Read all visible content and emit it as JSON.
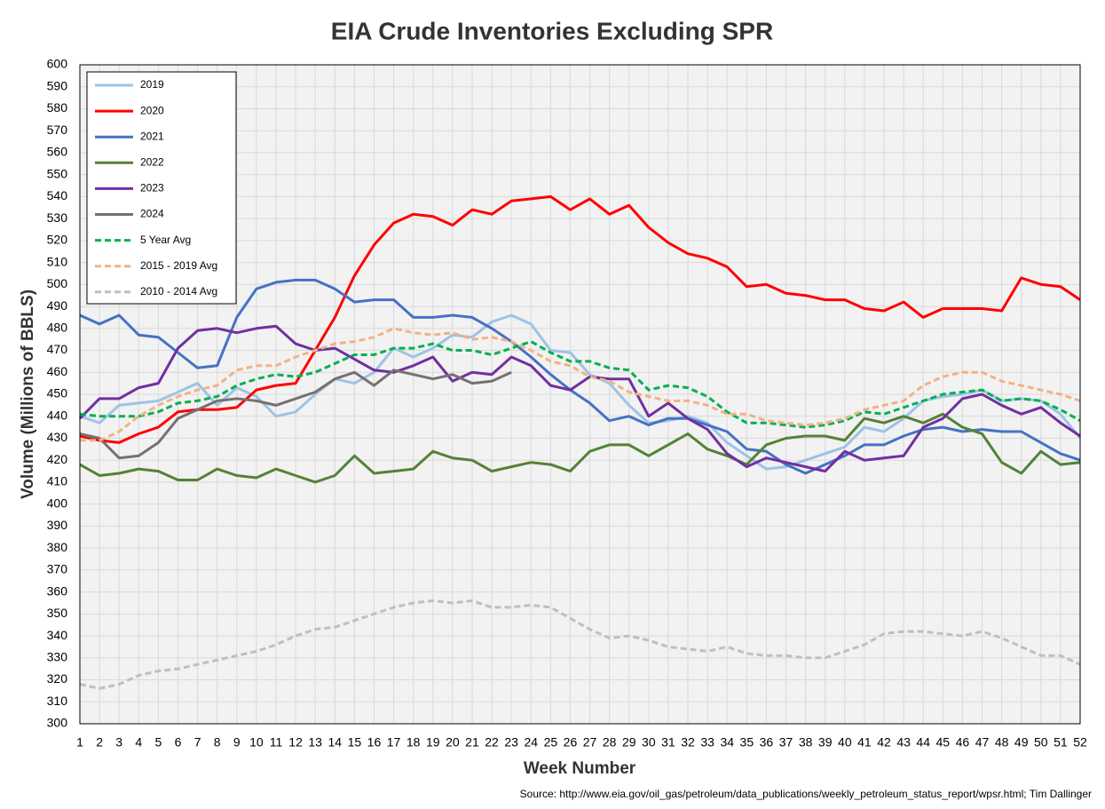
{
  "chart_data": {
    "type": "line",
    "title": "EIA Crude Inventories Excluding SPR",
    "x_label": "Week Number",
    "y_label": "Volume (Millions of BBLS)",
    "source": "Source: http://www.eia.gov/oil_gas/petroleum/data_publications/weekly_petroleum_status_report/wpsr.html; Tim Dallinger",
    "x": [
      1,
      2,
      3,
      4,
      5,
      6,
      7,
      8,
      9,
      10,
      11,
      12,
      13,
      14,
      15,
      16,
      17,
      18,
      19,
      20,
      21,
      22,
      23,
      24,
      25,
      26,
      27,
      28,
      29,
      30,
      31,
      32,
      33,
      34,
      35,
      36,
      37,
      38,
      39,
      40,
      41,
      42,
      43,
      44,
      45,
      46,
      47,
      48,
      49,
      50,
      51,
      52
    ],
    "xlim": [
      1,
      52
    ],
    "xticks": [
      1,
      2,
      3,
      4,
      5,
      6,
      7,
      8,
      9,
      10,
      11,
      12,
      13,
      14,
      15,
      16,
      17,
      18,
      19,
      20,
      21,
      22,
      23,
      24,
      25,
      26,
      27,
      28,
      29,
      30,
      31,
      32,
      33,
      34,
      35,
      36,
      37,
      38,
      39,
      40,
      41,
      42,
      43,
      44,
      45,
      46,
      47,
      48,
      49,
      50,
      51,
      52
    ],
    "ylim": [
      300,
      600
    ],
    "yticks": [
      300,
      310,
      320,
      330,
      340,
      350,
      360,
      370,
      380,
      390,
      400,
      410,
      420,
      430,
      440,
      450,
      460,
      470,
      480,
      490,
      500,
      510,
      520,
      530,
      540,
      550,
      560,
      570,
      580,
      590,
      600
    ],
    "grid": true,
    "legend": "upper left",
    "series": [
      {
        "name": "2019",
        "color": "#9dc3e6",
        "style": "solid",
        "values": [
          440,
          437,
          445,
          446,
          447,
          451,
          455,
          445,
          453,
          449,
          440,
          442,
          450,
          457,
          455,
          460,
          471,
          467,
          471,
          477,
          476,
          483,
          486,
          482,
          470,
          469,
          459,
          455,
          445,
          437,
          438,
          440,
          437,
          428,
          422,
          416,
          417,
          420,
          423,
          426,
          435,
          433,
          439,
          447,
          449,
          450,
          452,
          447,
          448,
          447,
          441,
          430
        ]
      },
      {
        "name": "2020",
        "color": "#ff0000",
        "style": "solid",
        "values": [
          431,
          429,
          428,
          432,
          435,
          442,
          443,
          443,
          444,
          452,
          454,
          455,
          470,
          485,
          504,
          518,
          528,
          532,
          531,
          527,
          534,
          532,
          538,
          539,
          540,
          534,
          539,
          532,
          536,
          526,
          519,
          514,
          512,
          508,
          499,
          500,
          496,
          495,
          493,
          493,
          489,
          488,
          492,
          485,
          489,
          489,
          489,
          488,
          503,
          500,
          499,
          493
        ]
      },
      {
        "name": "2021",
        "color": "#4472c4",
        "style": "solid",
        "values": [
          486,
          482,
          486,
          477,
          476,
          469,
          462,
          463,
          485,
          498,
          501,
          502,
          502,
          498,
          492,
          493,
          493,
          485,
          485,
          486,
          485,
          480,
          474,
          467,
          459,
          452,
          446,
          438,
          440,
          436,
          439,
          439,
          436,
          433,
          425,
          424,
          418,
          414,
          418,
          422,
          427,
          427,
          431,
          434,
          435,
          433,
          434,
          433,
          433,
          428,
          423,
          420
        ]
      },
      {
        "name": "2022",
        "color": "#548235",
        "style": "solid",
        "values": [
          418,
          413,
          414,
          416,
          415,
          411,
          411,
          416,
          413,
          412,
          416,
          413,
          410,
          413,
          422,
          414,
          415,
          416,
          424,
          421,
          420,
          415,
          417,
          419,
          418,
          415,
          424,
          427,
          427,
          422,
          427,
          432,
          425,
          422,
          418,
          427,
          430,
          431,
          431,
          429,
          439,
          437,
          440,
          437,
          441,
          435,
          432,
          419,
          414,
          424,
          418,
          419
        ]
      },
      {
        "name": "2023",
        "color": "#7030a0",
        "style": "solid",
        "values": [
          439,
          448,
          448,
          453,
          455,
          471,
          479,
          480,
          478,
          480,
          481,
          473,
          470,
          471,
          466,
          461,
          460,
          463,
          467,
          456,
          460,
          459,
          467,
          463,
          454,
          452,
          458,
          457,
          457,
          440,
          446,
          439,
          434,
          423,
          417,
          421,
          419,
          417,
          415,
          424,
          420,
          421,
          422,
          435,
          439,
          448,
          450,
          445,
          441,
          444,
          437,
          431
        ]
      },
      {
        "name": "2024",
        "color": "#767171",
        "style": "solid",
        "values": [
          432,
          430,
          421,
          422,
          428,
          439,
          443,
          447,
          448,
          447,
          445,
          448,
          451,
          457,
          460,
          454,
          461,
          459,
          457,
          459,
          455,
          456,
          460,
          null,
          null,
          null,
          null,
          null,
          null,
          null,
          null,
          null,
          null,
          null,
          null,
          null,
          null,
          null,
          null,
          null,
          null,
          null,
          null,
          null,
          null,
          null,
          null,
          null,
          null,
          null,
          null,
          null
        ]
      },
      {
        "name": "5 Year Avg",
        "color": "#00b050",
        "style": "dashed",
        "values": [
          441,
          440,
          440,
          440,
          442,
          446,
          447,
          449,
          454,
          457,
          459,
          458,
          460,
          464,
          468,
          468,
          471,
          471,
          473,
          470,
          470,
          468,
          471,
          474,
          469,
          465,
          465,
          462,
          461,
          452,
          454,
          453,
          449,
          442,
          437,
          437,
          436,
          435,
          436,
          438,
          442,
          441,
          444,
          447,
          450,
          451,
          452,
          447,
          448,
          447,
          443,
          438
        ]
      },
      {
        "name": "2015 - 2019 Avg",
        "color": "#f4b183",
        "style": "dashed",
        "values": [
          429,
          429,
          433,
          440,
          445,
          449,
          452,
          454,
          461,
          463,
          463,
          467,
          470,
          473,
          474,
          476,
          480,
          478,
          477,
          478,
          475,
          476,
          474,
          470,
          465,
          463,
          458,
          456,
          451,
          449,
          447,
          447,
          445,
          441,
          441,
          438,
          437,
          436,
          437,
          439,
          443,
          445,
          447,
          454,
          458,
          460,
          460,
          456,
          454,
          452,
          450,
          447
        ]
      },
      {
        "name": "2010 - 2014 Avg",
        "color": "#bfbfbf",
        "style": "dashed",
        "values": [
          318,
          316,
          318,
          322,
          324,
          325,
          327,
          329,
          331,
          333,
          336,
          340,
          343,
          344,
          347,
          350,
          353,
          355,
          356,
          355,
          356,
          353,
          353,
          354,
          353,
          348,
          343,
          339,
          340,
          338,
          335,
          334,
          333,
          335,
          332,
          331,
          331,
          330,
          330,
          333,
          336,
          341,
          342,
          342,
          341,
          340,
          342,
          339,
          335,
          331,
          331,
          327
        ]
      }
    ]
  }
}
